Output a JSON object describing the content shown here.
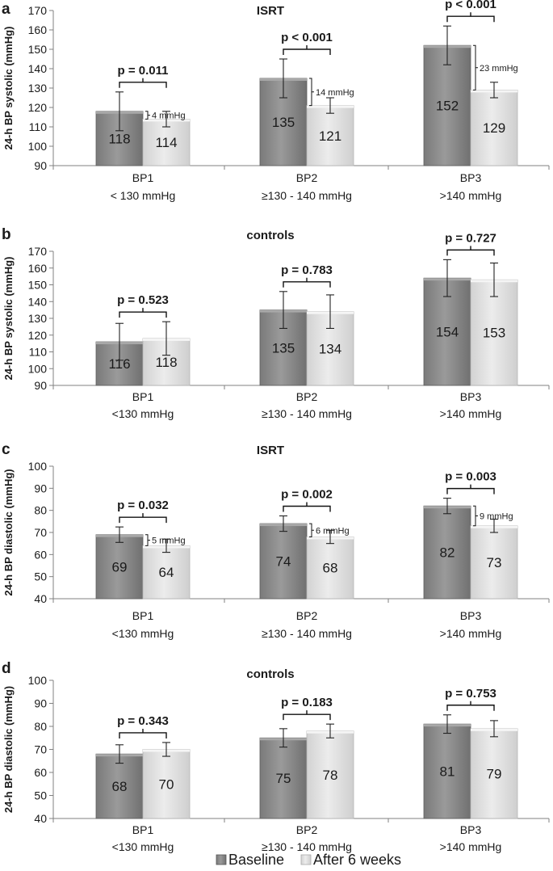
{
  "chart_data": [
    {
      "type": "bar",
      "panel_letter": "a",
      "title": "ISRT",
      "ylabel": "24-h BP systolic (mmHg)",
      "ylim": [
        90,
        170
      ],
      "yticks": [
        90,
        100,
        110,
        120,
        130,
        140,
        150,
        160,
        170
      ],
      "categories": [
        {
          "name": "BP1",
          "range": "< 130 mmHg"
        },
        {
          "name": "BP2",
          "range": "≥130 - 140 mmHg"
        },
        {
          "name": "BP3",
          "range": ">140 mmHg"
        }
      ],
      "series": [
        {
          "name": "Baseline",
          "values": [
            118,
            135,
            152
          ],
          "err_low": [
            108,
            125,
            142
          ],
          "err_high": [
            128,
            145,
            162
          ]
        },
        {
          "name": "After 6 weeks",
          "values": [
            114,
            121,
            129
          ],
          "err_low": [
            110,
            117,
            125
          ],
          "err_high": [
            118,
            125,
            133
          ]
        }
      ],
      "p_values": [
        "p = 0.011",
        "p < 0.001",
        "p < 0.001"
      ],
      "differences": [
        "4 mmHg",
        "14 mmHg",
        "23 mmHg"
      ]
    },
    {
      "type": "bar",
      "panel_letter": "b",
      "title": "controls",
      "ylabel": "24-h BP systolic (mmHg)",
      "ylim": [
        90,
        170
      ],
      "yticks": [
        90,
        100,
        110,
        120,
        130,
        140,
        150,
        160,
        170
      ],
      "categories": [
        {
          "name": "BP1",
          "range": "<130 mmHg"
        },
        {
          "name": "BP2",
          "range": "≥130 - 140 mmHg"
        },
        {
          "name": "BP3",
          "range": ">140 mmHg"
        }
      ],
      "series": [
        {
          "name": "Baseline",
          "values": [
            116,
            135,
            154
          ],
          "err_low": [
            105,
            124,
            143
          ],
          "err_high": [
            127,
            146,
            165
          ]
        },
        {
          "name": "After 6 weeks",
          "values": [
            118,
            134,
            153
          ],
          "err_low": [
            108,
            124,
            143
          ],
          "err_high": [
            128,
            144,
            163
          ]
        }
      ],
      "p_values": [
        "p = 0.523",
        "p = 0.783",
        "p = 0.727"
      ],
      "differences": []
    },
    {
      "type": "bar",
      "panel_letter": "c",
      "title": "ISRT",
      "ylabel": "24-h BP diastolic (mmHg)",
      "ylim": [
        40,
        100
      ],
      "yticks": [
        40,
        50,
        60,
        70,
        80,
        90,
        100
      ],
      "categories": [
        {
          "name": "BP1",
          "range": "<130 mmHg"
        },
        {
          "name": "BP2",
          "range": "≥130 - 140 mmHg"
        },
        {
          "name": "BP3",
          "range": ">140 mmHg"
        }
      ],
      "series": [
        {
          "name": "Baseline",
          "values": [
            69,
            74,
            82
          ],
          "err_low": [
            65.5,
            70.5,
            78.5
          ],
          "err_high": [
            72.5,
            77.5,
            85.5
          ]
        },
        {
          "name": "After 6 weeks",
          "values": [
            64,
            68,
            73
          ],
          "err_low": [
            61,
            65,
            70
          ],
          "err_high": [
            67,
            71,
            76
          ]
        }
      ],
      "p_values": [
        "p = 0.032",
        "p = 0.002",
        "p = 0.003"
      ],
      "differences": [
        "5 mmHg",
        "6 mmHg",
        "9 mmHg"
      ]
    },
    {
      "type": "bar",
      "panel_letter": "d",
      "title": "controls",
      "ylabel": "24-h BP diastolic (mmHg)",
      "ylim": [
        40,
        100
      ],
      "yticks": [
        40,
        50,
        60,
        70,
        80,
        90,
        100
      ],
      "categories": [
        {
          "name": "BP1",
          "range": "<130 mmHg"
        },
        {
          "name": "BP2",
          "range": "≥130 - 140 mmHg"
        },
        {
          "name": "BP3",
          "range": ">140 mmHg"
        }
      ],
      "series": [
        {
          "name": "Baseline",
          "values": [
            68,
            75,
            81
          ],
          "err_low": [
            64,
            71,
            77
          ],
          "err_high": [
            72,
            79,
            85
          ]
        },
        {
          "name": "After 6 weeks",
          "values": [
            70,
            78,
            79
          ],
          "err_low": [
            67,
            75,
            75.5
          ],
          "err_high": [
            73,
            81,
            82.5
          ]
        }
      ],
      "p_values": [
        "p = 0.343",
        "p = 0.183",
        "p = 0.753"
      ],
      "differences": []
    }
  ],
  "legend": {
    "items": [
      {
        "label": "Baseline",
        "color": "#8c8c8c"
      },
      {
        "label": "After 6 weeks",
        "color": "#e0e0e0"
      }
    ]
  },
  "colors": {
    "baseline": "#8c8c8c",
    "after": "#e0e0e0",
    "axis": "#808080",
    "text": "#1a1a1a"
  }
}
